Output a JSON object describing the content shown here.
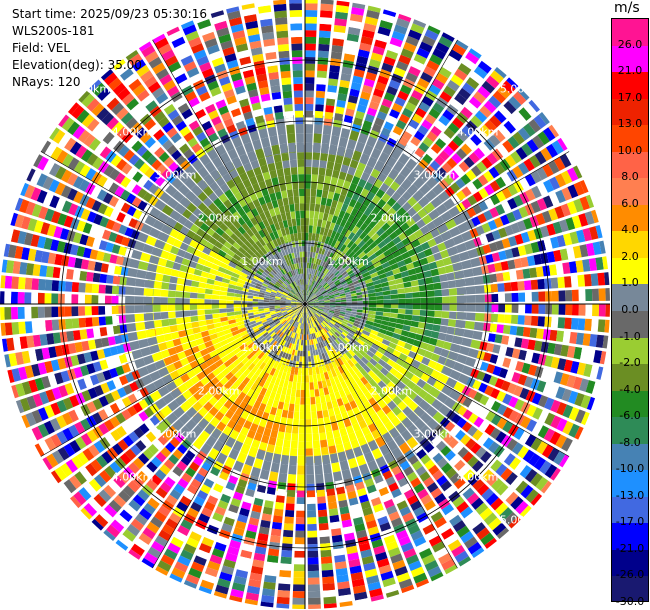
{
  "info": {
    "start_time": "Start time: 2025/09/23 05:30:16",
    "instrument": "WLS200s-181",
    "field": "Field: VEL",
    "elevation": "Elevation(deg): 35.00",
    "nrays": "NRays: 120"
  },
  "chart_data": {
    "type": "heatmap",
    "projection": "polar-ppi",
    "nrays": 120,
    "max_range_km": 5.0,
    "colorbar": {
      "unit": "m/s",
      "tick_labels": [
        "26.0",
        "21.0",
        "17.0",
        "13.0",
        "10.0",
        "8.0",
        "6.0",
        "4.0",
        "2.0",
        "1.0",
        "0.0",
        "-1.0",
        "-2.0",
        "-4.0",
        "-6.0",
        "-8.0",
        "-10.0",
        "-13.0",
        "-17.0",
        "-21.0",
        "-26.0",
        "-30.0"
      ],
      "colors": [
        "#ff1493",
        "#ff00ff",
        "#ff0000",
        "#ee2200",
        "#ff4500",
        "#ff6347",
        "#ff7f50",
        "#ff8c00",
        "#ffd700",
        "#ffff00",
        "#778899",
        "#696969",
        "#9acd32",
        "#6b8e23",
        "#228b22",
        "#2e8b57",
        "#4682b4",
        "#1e90ff",
        "#4169e1",
        "#0000ff",
        "#00008b",
        "#191970"
      ]
    },
    "ring_labels": [
      "1.00km",
      "2.00km",
      "3.00km",
      "4.00km",
      "5.00km"
    ],
    "ring_label_positions": [
      [
        "1.00km",
        "1.00km",
        "1.00km",
        "1.00km"
      ],
      [
        "2.00km",
        "2.00km",
        "2.00km",
        "2.00km"
      ],
      [
        "3.00km",
        "3.00km",
        "3.00km",
        "3.00km"
      ],
      [
        "4.00km",
        "4.00km",
        "4.00km",
        "4.00km"
      ],
      [
        "5.00km",
        "5.00km",
        "5.00km"
      ]
    ],
    "ring_radii_km": [
      1,
      2,
      3,
      4
    ],
    "regions": {
      "near_noise_km": 1.05,
      "signal_max_km": 2.5,
      "gray_edge_km": 2.95,
      "noise_max_km": 5.0
    },
    "palette": {
      "yellow": "#ffff00",
      "gold": "#ffd700",
      "orange": "#ff8c00",
      "yellowgreen": "#9acd32",
      "olive": "#6b8e23",
      "green": "#228b22",
      "seagreen": "#2e8b57",
      "gray": "#778899",
      "dimgray": "#696969"
    }
  }
}
